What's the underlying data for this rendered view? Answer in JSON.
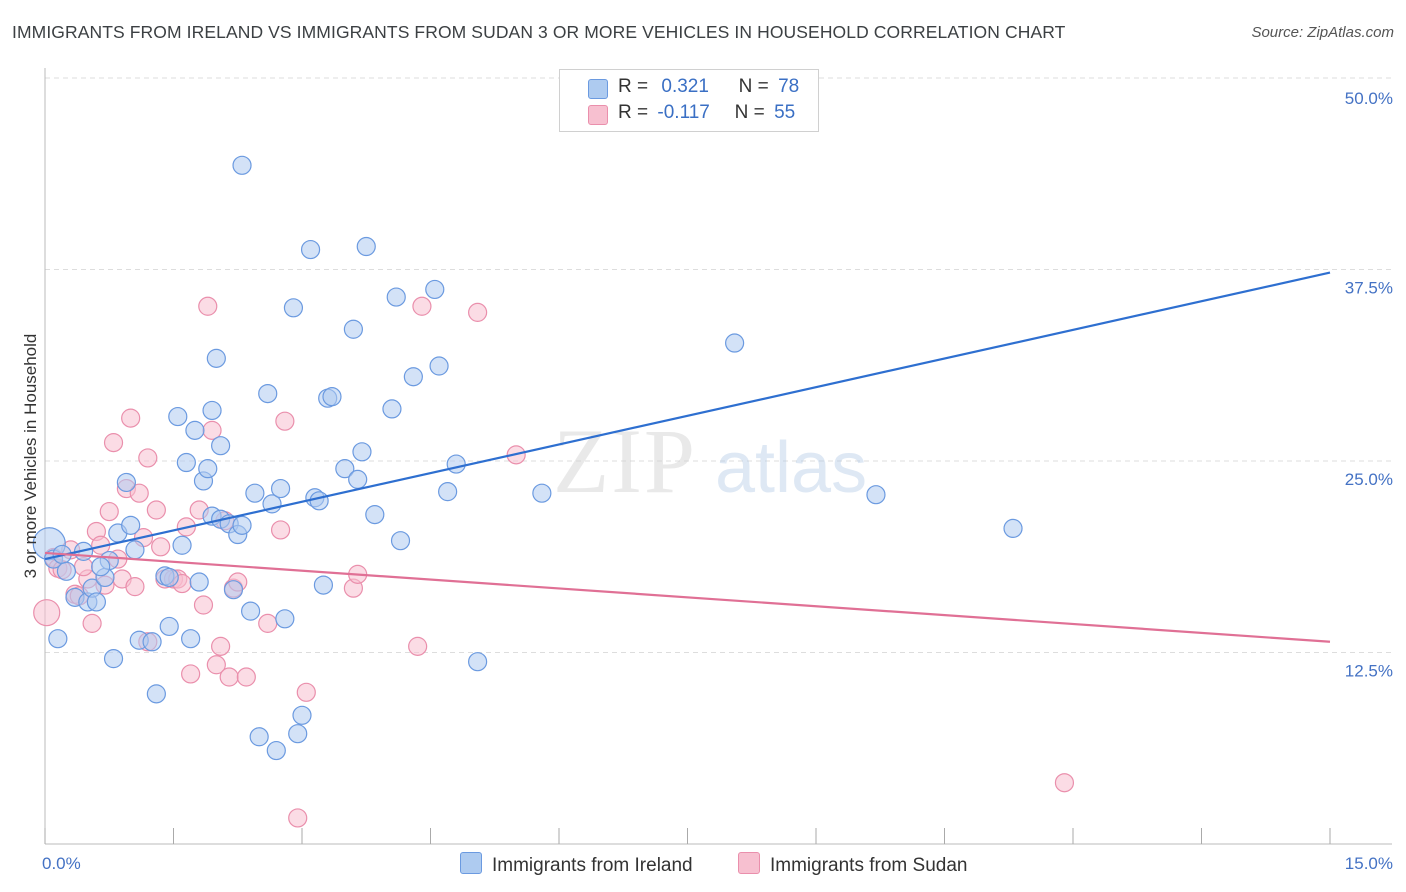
{
  "title": "IMMIGRANTS FROM IRELAND VS IMMIGRANTS FROM SUDAN 3 OR MORE VEHICLES IN HOUSEHOLD CORRELATION CHART",
  "source": "Source: ZipAtlas.com",
  "watermark": {
    "zip": "ZIP",
    "atlas": "atlas"
  },
  "colors": {
    "ireland_fill": "#aecbf0",
    "ireland_stroke": "#6b9ae0",
    "ireland_line": "#2e6fd0",
    "sudan_fill": "#f7c0d0",
    "sudan_stroke": "#ea8fac",
    "sudan_line": "#e07095",
    "tick_text": "#4472c4",
    "grid": "#dddddd"
  },
  "legend": {
    "r_label": "R =",
    "n_label": "N =",
    "ireland": {
      "r": "0.321",
      "n": "78"
    },
    "sudan": {
      "r": "-0.117",
      "n": "55"
    }
  },
  "chart_data": {
    "type": "scatter",
    "title": "IMMIGRANTS FROM IRELAND VS IMMIGRANTS FROM SUDAN 3 OR MORE VEHICLES IN HOUSEHOLD CORRELATION CHART",
    "xlabel": "",
    "ylabel": "3 or more Vehicles in Household",
    "xlim": [
      0,
      15
    ],
    "ylim": [
      0,
      50
    ],
    "x_tick_labels": {
      "min": "0.0%",
      "max": "15.0%"
    },
    "y_ticks": [
      12.5,
      25.0,
      37.5,
      50.0
    ],
    "y_tick_labels": [
      "12.5%",
      "25.0%",
      "37.5%",
      "50.0%"
    ],
    "x_minor_ticks": [
      0,
      1.5,
      3,
      4.5,
      6,
      7.5,
      9,
      10.5,
      12,
      13.5,
      15
    ],
    "grid": true,
    "series": [
      {
        "name": "Immigrants from Ireland",
        "color": "#6b9ae0",
        "trend": {
          "x": [
            0,
            15
          ],
          "y": [
            18.6,
            37.3
          ]
        },
        "points": [
          {
            "x": 0.05,
            "y": 19.6,
            "r": 16
          },
          {
            "x": 0.1,
            "y": 18.6
          },
          {
            "x": 0.2,
            "y": 18.9
          },
          {
            "x": 0.15,
            "y": 13.4
          },
          {
            "x": 0.25,
            "y": 17.8
          },
          {
            "x": 0.35,
            "y": 16.1
          },
          {
            "x": 0.45,
            "y": 19.1
          },
          {
            "x": 0.5,
            "y": 15.8
          },
          {
            "x": 0.55,
            "y": 16.7
          },
          {
            "x": 0.6,
            "y": 15.8
          },
          {
            "x": 0.7,
            "y": 17.4
          },
          {
            "x": 0.75,
            "y": 18.5
          },
          {
            "x": 0.8,
            "y": 12.1
          },
          {
            "x": 0.85,
            "y": 20.3
          },
          {
            "x": 0.95,
            "y": 23.6
          },
          {
            "x": 1.0,
            "y": 20.8
          },
          {
            "x": 1.05,
            "y": 19.2
          },
          {
            "x": 1.1,
            "y": 13.3
          },
          {
            "x": 1.25,
            "y": 13.2
          },
          {
            "x": 1.3,
            "y": 9.8
          },
          {
            "x": 1.4,
            "y": 17.5
          },
          {
            "x": 1.45,
            "y": 14.2
          },
          {
            "x": 1.45,
            "y": 17.4
          },
          {
            "x": 1.55,
            "y": 27.9
          },
          {
            "x": 1.6,
            "y": 19.5
          },
          {
            "x": 1.65,
            "y": 24.9
          },
          {
            "x": 1.7,
            "y": 13.4
          },
          {
            "x": 1.75,
            "y": 27.0
          },
          {
            "x": 1.8,
            "y": 17.1
          },
          {
            "x": 1.85,
            "y": 23.7
          },
          {
            "x": 1.9,
            "y": 24.5
          },
          {
            "x": 1.95,
            "y": 21.4
          },
          {
            "x": 1.95,
            "y": 28.3
          },
          {
            "x": 2.0,
            "y": 31.7
          },
          {
            "x": 2.05,
            "y": 21.2
          },
          {
            "x": 2.05,
            "y": 26.0
          },
          {
            "x": 2.15,
            "y": 20.9
          },
          {
            "x": 2.2,
            "y": 16.6
          },
          {
            "x": 2.25,
            "y": 20.2
          },
          {
            "x": 2.3,
            "y": 20.8
          },
          {
            "x": 2.3,
            "y": 44.3
          },
          {
            "x": 2.4,
            "y": 15.2
          },
          {
            "x": 2.45,
            "y": 22.9
          },
          {
            "x": 2.5,
            "y": 7.0
          },
          {
            "x": 2.6,
            "y": 29.4
          },
          {
            "x": 2.65,
            "y": 22.2
          },
          {
            "x": 2.7,
            "y": 6.1
          },
          {
            "x": 2.75,
            "y": 23.2
          },
          {
            "x": 2.8,
            "y": 14.7
          },
          {
            "x": 2.9,
            "y": 35.0
          },
          {
            "x": 2.95,
            "y": 7.2
          },
          {
            "x": 3.0,
            "y": 8.4
          },
          {
            "x": 3.1,
            "y": 38.8
          },
          {
            "x": 3.15,
            "y": 22.6
          },
          {
            "x": 3.2,
            "y": 22.4
          },
          {
            "x": 3.25,
            "y": 16.9
          },
          {
            "x": 3.3,
            "y": 29.1
          },
          {
            "x": 3.35,
            "y": 29.2
          },
          {
            "x": 3.5,
            "y": 24.5
          },
          {
            "x": 3.6,
            "y": 33.6
          },
          {
            "x": 3.65,
            "y": 23.8
          },
          {
            "x": 3.7,
            "y": 25.6
          },
          {
            "x": 3.75,
            "y": 39.0
          },
          {
            "x": 3.85,
            "y": 21.5
          },
          {
            "x": 4.05,
            "y": 28.4
          },
          {
            "x": 4.1,
            "y": 35.7
          },
          {
            "x": 4.15,
            "y": 19.8
          },
          {
            "x": 4.3,
            "y": 30.5
          },
          {
            "x": 4.55,
            "y": 36.2
          },
          {
            "x": 4.6,
            "y": 31.2
          },
          {
            "x": 4.7,
            "y": 23.0
          },
          {
            "x": 4.8,
            "y": 24.8
          },
          {
            "x": 5.05,
            "y": 11.9
          },
          {
            "x": 5.8,
            "y": 22.9
          },
          {
            "x": 8.05,
            "y": 32.7
          },
          {
            "x": 9.7,
            "y": 22.8
          },
          {
            "x": 11.3,
            "y": 20.6
          },
          {
            "x": 0.65,
            "y": 18.1
          }
        ]
      },
      {
        "name": "Immigrants from Sudan",
        "color": "#ea8fac",
        "trend": {
          "x": [
            0,
            15
          ],
          "y": [
            19.0,
            13.2
          ]
        },
        "points": [
          {
            "x": 0.02,
            "y": 15.1,
            "r": 13
          },
          {
            "x": 0.1,
            "y": 18.7
          },
          {
            "x": 0.15,
            "y": 18.0
          },
          {
            "x": 0.2,
            "y": 17.9
          },
          {
            "x": 0.3,
            "y": 19.2
          },
          {
            "x": 0.35,
            "y": 16.3
          },
          {
            "x": 0.4,
            "y": 16.2
          },
          {
            "x": 0.5,
            "y": 17.3
          },
          {
            "x": 0.55,
            "y": 14.4
          },
          {
            "x": 0.6,
            "y": 20.4
          },
          {
            "x": 0.65,
            "y": 19.5
          },
          {
            "x": 0.7,
            "y": 16.9
          },
          {
            "x": 0.75,
            "y": 21.7
          },
          {
            "x": 0.8,
            "y": 26.2
          },
          {
            "x": 0.85,
            "y": 18.6
          },
          {
            "x": 0.9,
            "y": 17.3
          },
          {
            "x": 0.95,
            "y": 23.2
          },
          {
            "x": 1.0,
            "y": 27.8
          },
          {
            "x": 1.05,
            "y": 16.8
          },
          {
            "x": 1.1,
            "y": 22.9
          },
          {
            "x": 1.15,
            "y": 20.0
          },
          {
            "x": 1.2,
            "y": 13.2
          },
          {
            "x": 1.2,
            "y": 25.2
          },
          {
            "x": 1.3,
            "y": 21.8
          },
          {
            "x": 1.35,
            "y": 19.4
          },
          {
            "x": 1.4,
            "y": 17.3
          },
          {
            "x": 1.5,
            "y": 17.3
          },
          {
            "x": 1.55,
            "y": 17.3
          },
          {
            "x": 1.6,
            "y": 17.0
          },
          {
            "x": 1.65,
            "y": 20.7
          },
          {
            "x": 1.7,
            "y": 11.1
          },
          {
            "x": 1.8,
            "y": 21.8
          },
          {
            "x": 1.85,
            "y": 15.6
          },
          {
            "x": 1.9,
            "y": 35.1
          },
          {
            "x": 1.95,
            "y": 27.0
          },
          {
            "x": 2.0,
            "y": 11.7
          },
          {
            "x": 2.05,
            "y": 12.9
          },
          {
            "x": 2.1,
            "y": 21.1
          },
          {
            "x": 2.15,
            "y": 10.9
          },
          {
            "x": 2.2,
            "y": 16.7
          },
          {
            "x": 2.25,
            "y": 17.1
          },
          {
            "x": 2.35,
            "y": 10.9
          },
          {
            "x": 2.6,
            "y": 14.4
          },
          {
            "x": 2.75,
            "y": 20.5
          },
          {
            "x": 2.8,
            "y": 27.6
          },
          {
            "x": 2.95,
            "y": 1.7
          },
          {
            "x": 3.05,
            "y": 9.9
          },
          {
            "x": 3.6,
            "y": 16.7
          },
          {
            "x": 3.65,
            "y": 17.6
          },
          {
            "x": 4.35,
            "y": 12.9
          },
          {
            "x": 4.4,
            "y": 35.1
          },
          {
            "x": 5.05,
            "y": 34.7
          },
          {
            "x": 5.5,
            "y": 25.4
          },
          {
            "x": 11.9,
            "y": 4.0
          },
          {
            "x": 0.45,
            "y": 18.1
          }
        ]
      }
    ]
  }
}
